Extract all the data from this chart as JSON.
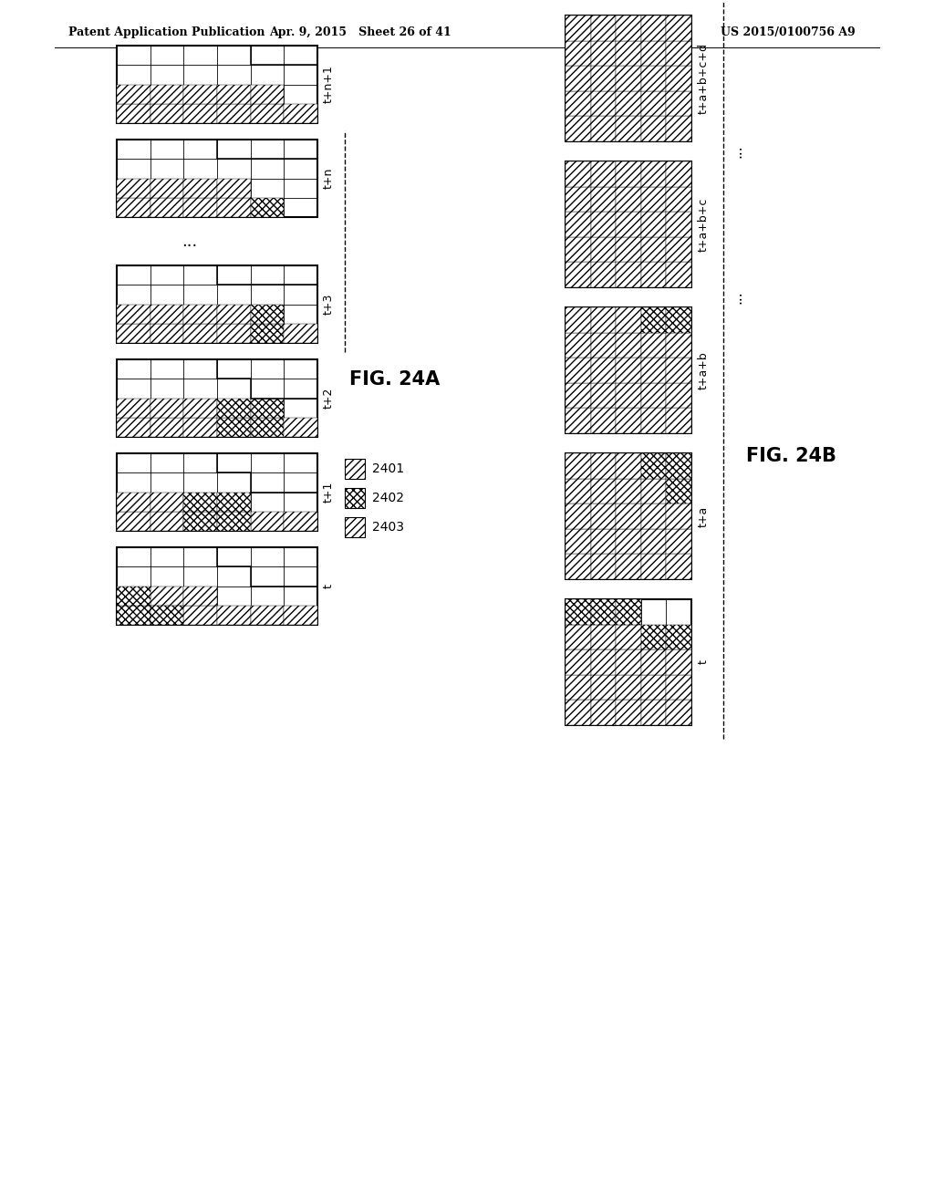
{
  "header_left": "Patent Application Publication",
  "header_mid": "Apr. 9, 2015   Sheet 26 of 41",
  "header_right": "US 2015/0100756 A9",
  "fig24a_label": "FIG. 24A",
  "fig24b_label": "FIG. 24B",
  "fig24a_time_labels": [
    "t",
    "t+1",
    "t+2",
    "t+3",
    "t+n",
    "t+n+1"
  ],
  "fig24b_time_labels": [
    "t",
    "t+a",
    "t+a+b",
    "t+a+b+c",
    "t+a+b+c+d"
  ],
  "legend_labels": [
    "2401",
    "2402",
    "2403"
  ],
  "bg": "#ffffff",
  "lc": "#000000"
}
